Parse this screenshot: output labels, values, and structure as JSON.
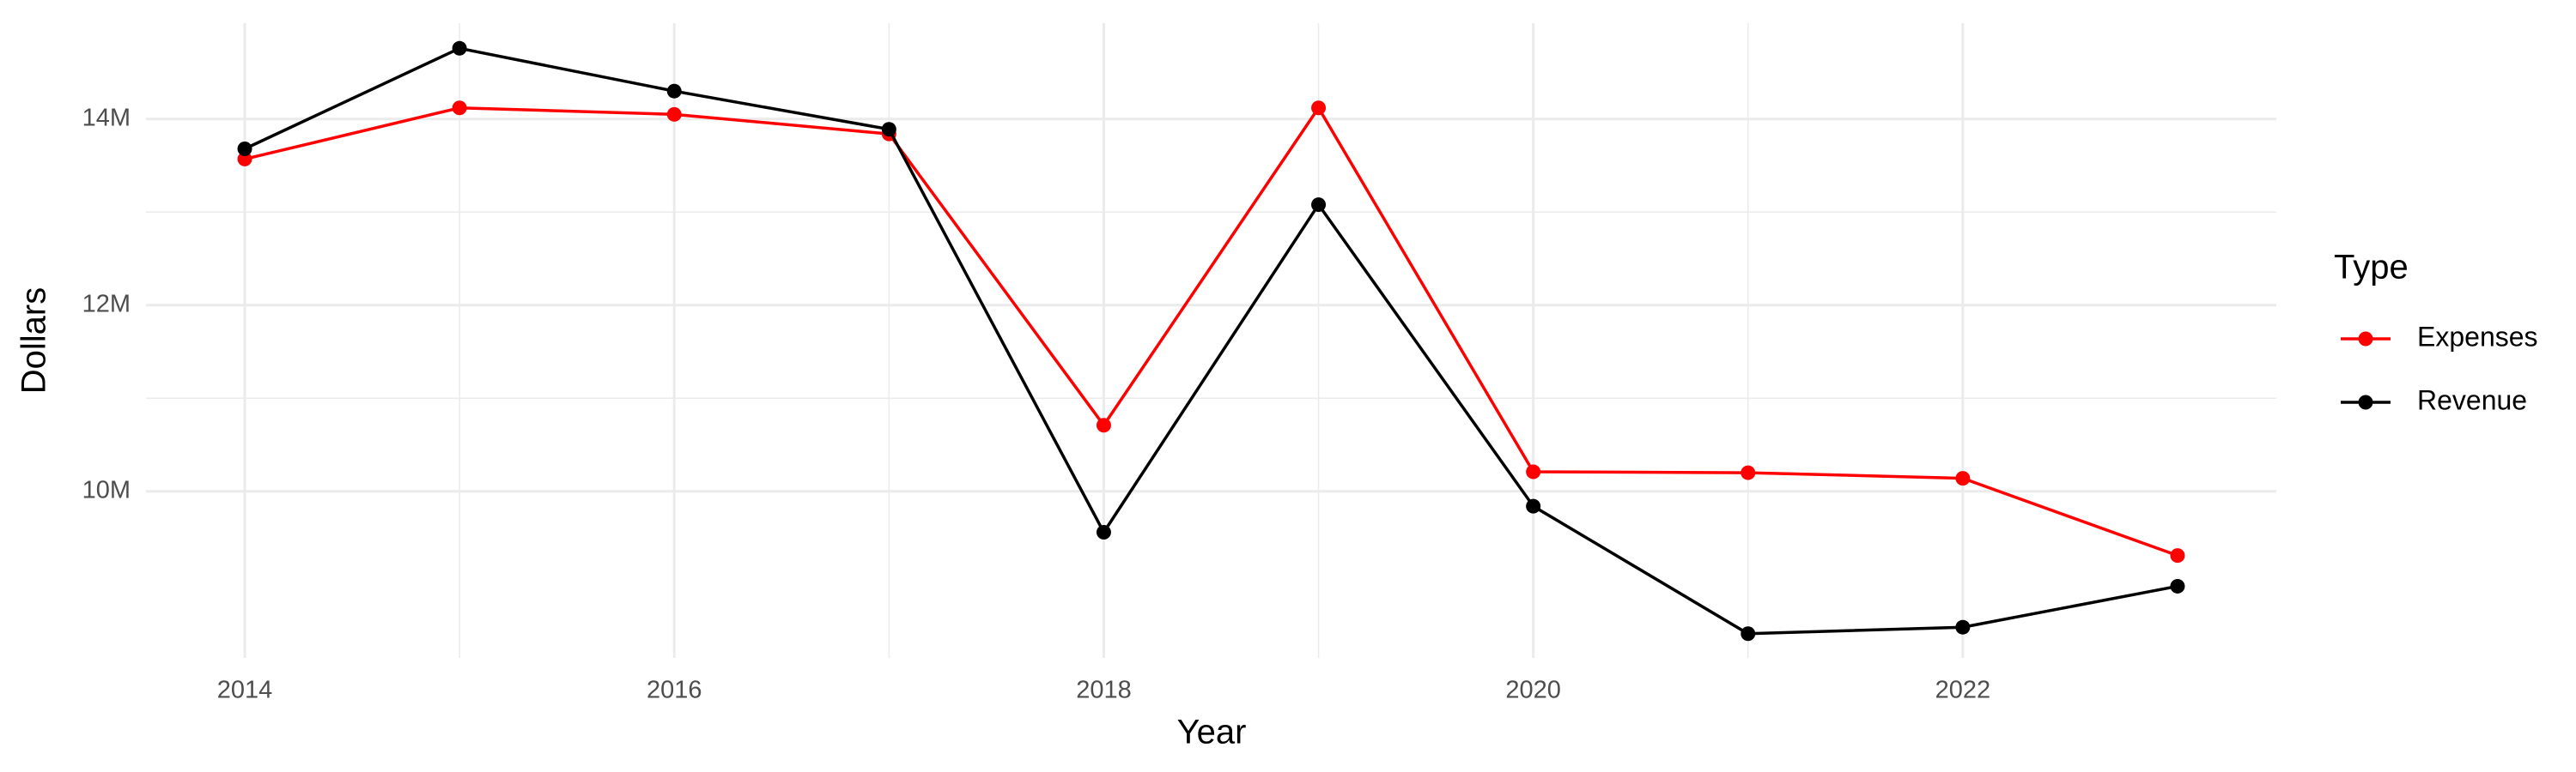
{
  "chart_data": {
    "type": "line",
    "x_label": "Year",
    "y_label": "Dollars",
    "legend_title": "Type",
    "legend": "right",
    "x": [
      2014,
      2015,
      2016,
      2017,
      2018,
      2019,
      2020,
      2021,
      2022,
      2023
    ],
    "series": [
      {
        "name": "Expenses",
        "color": "#ff0000",
        "values": [
          13570000,
          14120000,
          14050000,
          13840000,
          10710000,
          14120000,
          10210000,
          10200000,
          10140000,
          9310000
        ]
      },
      {
        "name": "Revenue",
        "color": "#000000",
        "values": [
          13680000,
          14760000,
          14300000,
          13890000,
          9560000,
          13080000,
          9840000,
          8470000,
          8540000,
          8980000
        ]
      }
    ],
    "xlim": [
      2013.54,
      2023.46
    ],
    "xticks": [
      2014,
      2016,
      2018,
      2020,
      2022
    ],
    "ylim": [
      8210000,
      15030000
    ],
    "yticks": [
      {
        "value": 10000000,
        "label": "10M"
      },
      {
        "value": 12000000,
        "label": "12M"
      },
      {
        "value": 14000000,
        "label": "14M"
      }
    ],
    "grid": true
  }
}
